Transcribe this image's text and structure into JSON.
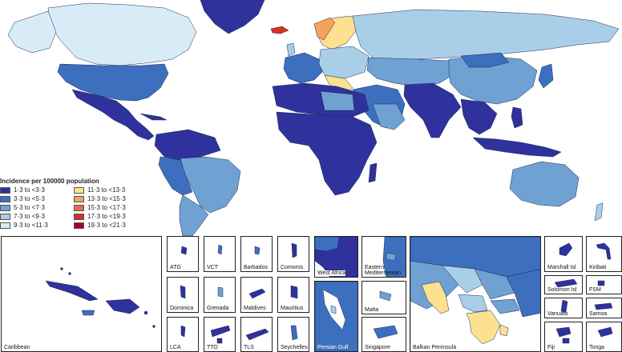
{
  "legend": {
    "title": "Incidence per 100000 population",
    "items": [
      {
        "label": "1·3 to <3·3",
        "color": "#2f319c"
      },
      {
        "label": "11·3 to <13·3",
        "color": "#fde090"
      },
      {
        "label": "3·3 to <5·3",
        "color": "#3d6fbf"
      },
      {
        "label": "13·3 to <15·3",
        "color": "#f6a35a"
      },
      {
        "label": "5·3 to <7·3",
        "color": "#6fa1d3"
      },
      {
        "label": "15·3 to <17·3",
        "color": "#ea6a44"
      },
      {
        "label": "7·3 to <9·3",
        "color": "#a9cfe8"
      },
      {
        "label": "17·3 to <19·3",
        "color": "#d7301f"
      },
      {
        "label": "9·3 to <11·3",
        "color": "#d8ecf7"
      },
      {
        "label": "19·3 to <21·3",
        "color": "#a50026"
      }
    ]
  },
  "insets": {
    "caribbean": "Caribbean",
    "atg": "ATG",
    "vct": "VCT",
    "barbados": "Barbados",
    "comoros": "Comoros",
    "dominica": "Dominica",
    "grenada": "Grenada",
    "maldives": "Maldives",
    "mauritius": "Mauritius",
    "lca": "LCA",
    "tto": "TTO",
    "tls": "TLS",
    "seychelles": "Seychelles",
    "west_africa": "West Africa",
    "east_med": "Eastern Mediterranean",
    "malta": "Malta",
    "persian_gulf": "Persian Gulf",
    "singapore": "Singapore",
    "balkan": "Balkan Peninsula",
    "marshall": "Marshall Isl",
    "kiribati": "Kiribati",
    "solomon": "Solomon Isl",
    "fsm": "FSM",
    "vanuatu": "Vanuatu",
    "samoa": "Samoa",
    "fiji": "Fiji",
    "tonga": "Tonga"
  }
}
